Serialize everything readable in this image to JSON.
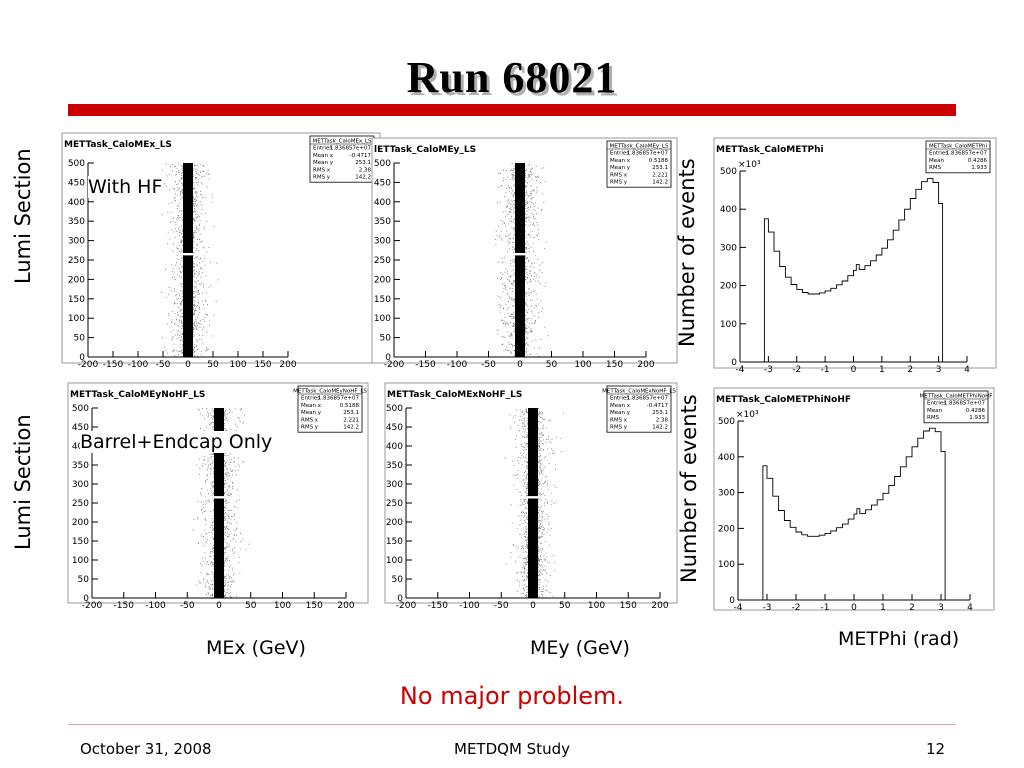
{
  "slide": {
    "title": "Run 68021",
    "annotations": {
      "with_hf": "With HF",
      "barrel_endcap": "Barrel+Endcap Only"
    },
    "row_labels": {
      "lumi_section": "Lumi Section",
      "number_of_events": "Number of events"
    },
    "column_captions": {
      "mex": "MEx (GeV)",
      "mey": "MEy (GeV)",
      "metphi": "METPhi (rad)"
    },
    "conclusion": "No major problem.",
    "footer": {
      "date": "October 31, 2008",
      "center": "METDQM Study",
      "page": "12"
    },
    "colors": {
      "title_bar": "#cc0000",
      "conclusion": "#cc0000",
      "histogram": "#000000"
    }
  },
  "chart_data": [
    {
      "type": "scatter",
      "title": "METTask_CaloMEx_LS",
      "xlim": [
        -200,
        200
      ],
      "ylim": [
        0,
        500
      ],
      "x_ticks": [
        "-200",
        "-150",
        "-100",
        "-50",
        "0",
        "50",
        "100",
        "150",
        "200"
      ],
      "y_ticks": [
        "0",
        "50",
        "100",
        "150",
        "200",
        "250",
        "300",
        "350",
        "400",
        "450",
        "500"
      ],
      "stats": [
        [
          "METTask_CaloMEx_LS",
          ""
        ],
        [
          "Entries",
          "1.836857e+07"
        ],
        [
          "Mean x",
          "-0.4717"
        ],
        [
          "Mean y",
          "253.1"
        ],
        [
          "RMS x",
          "2.38"
        ],
        [
          "RMS y",
          "142.2"
        ]
      ]
    },
    {
      "type": "scatter",
      "title": "lETTask_CaloMEy_LS",
      "xlim": [
        -200,
        200
      ],
      "ylim": [
        0,
        500
      ],
      "x_ticks": [
        "-200",
        "-150",
        "-100",
        "-50",
        "0",
        "50",
        "100",
        "150",
        "200"
      ],
      "y_ticks": [
        "0",
        "50",
        "100",
        "150",
        "200",
        "250",
        "300",
        "350",
        "400",
        "450",
        "500"
      ],
      "stats": [
        [
          "METTask_CaloMEy_LS",
          ""
        ],
        [
          "Entries",
          "1.836857e+07"
        ],
        [
          "Mean x",
          "0.5188"
        ],
        [
          "Mean y",
          "253.1"
        ],
        [
          "RMS x",
          "2.221"
        ],
        [
          "RMS y",
          "142.2"
        ]
      ]
    },
    {
      "type": "line",
      "title": "METTask_CaloMETPhi",
      "xlim": [
        -4,
        4
      ],
      "ylim": [
        0,
        500
      ],
      "y_multiplier": "×10³",
      "x_ticks": [
        "-4",
        "-3",
        "-2",
        "-1",
        "0",
        "1",
        "2",
        "3",
        "4"
      ],
      "y_ticks": [
        "0",
        "100",
        "200",
        "300",
        "400",
        "500"
      ],
      "stats": [
        [
          "METTask_CaloMETPhi",
          ""
        ],
        [
          "Entries",
          "1.836857e+07"
        ],
        [
          "Mean",
          "0.4286"
        ],
        [
          "RMS",
          "1.933"
        ]
      ],
      "x": [
        -3.14,
        -3.0,
        -2.8,
        -2.6,
        -2.4,
        -2.2,
        -2.0,
        -1.8,
        -1.6,
        -1.4,
        -1.2,
        -1.0,
        -0.8,
        -0.6,
        -0.4,
        -0.2,
        0.0,
        0.1,
        0.2,
        0.4,
        0.6,
        0.8,
        1.0,
        1.2,
        1.4,
        1.6,
        1.8,
        2.0,
        2.2,
        2.4,
        2.6,
        2.8,
        3.0,
        3.14
      ],
      "y": [
        375,
        340,
        290,
        250,
        222,
        203,
        190,
        182,
        178,
        178,
        181,
        186,
        193,
        202,
        212,
        226,
        240,
        255,
        242,
        252,
        265,
        280,
        298,
        320,
        345,
        372,
        400,
        428,
        452,
        472,
        480,
        470,
        415,
        375
      ]
    },
    {
      "type": "scatter",
      "title": "METTask_CaloMEyNoHF_LS",
      "xlim": [
        -200,
        200
      ],
      "ylim": [
        0,
        500
      ],
      "x_ticks": [
        "-200",
        "-150",
        "-100",
        "-50",
        "0",
        "50",
        "100",
        "150",
        "200"
      ],
      "y_ticks": [
        "0",
        "50",
        "100",
        "150",
        "200",
        "250",
        "300",
        "350",
        "400",
        "450",
        "500"
      ],
      "stats": [
        [
          "METTask_CaloMEyNoHF_LS",
          ""
        ],
        [
          "Entries",
          "1.836857e+07"
        ],
        [
          "Mean x",
          "0.5188"
        ],
        [
          "Mean y",
          "253.1"
        ],
        [
          "RMS x",
          "2.221"
        ],
        [
          "RMS y",
          "142.2"
        ]
      ]
    },
    {
      "type": "scatter",
      "title": "METTask_CaloMExNoHF_LS",
      "xlim": [
        -200,
        200
      ],
      "ylim": [
        0,
        500
      ],
      "x_ticks": [
        "-200",
        "-150",
        "-100",
        "-50",
        "0",
        "50",
        "100",
        "150",
        "200"
      ],
      "y_ticks": [
        "0",
        "50",
        "100",
        "150",
        "200",
        "250",
        "300",
        "350",
        "400",
        "450",
        "500"
      ],
      "stats": [
        [
          "METTask_CaloMExNoHF_LS",
          ""
        ],
        [
          "Entries",
          "1.836857e+07"
        ],
        [
          "Mean x",
          "-0.4717"
        ],
        [
          "Mean y",
          "253.1"
        ],
        [
          "RMS x",
          "2.38"
        ],
        [
          "RMS y",
          "142.2"
        ]
      ]
    },
    {
      "type": "line",
      "title": "METTask_CaloMETPhiNoHF",
      "xlim": [
        -4,
        4
      ],
      "ylim": [
        0,
        500
      ],
      "y_multiplier": "×10³",
      "x_ticks": [
        "-4",
        "-3",
        "-2",
        "-1",
        "0",
        "1",
        "2",
        "3",
        "4"
      ],
      "y_ticks": [
        "0",
        "100",
        "200",
        "300",
        "400",
        "500"
      ],
      "stats": [
        [
          "METTask_CaloMETPhiNoHF",
          ""
        ],
        [
          "Entries",
          "1.836857e+07"
        ],
        [
          "Mean",
          "0.4286"
        ],
        [
          "RMS",
          "1.933"
        ]
      ],
      "x": [
        -3.14,
        -3.0,
        -2.8,
        -2.6,
        -2.4,
        -2.2,
        -2.0,
        -1.8,
        -1.6,
        -1.4,
        -1.2,
        -1.0,
        -0.8,
        -0.6,
        -0.4,
        -0.2,
        0.0,
        0.1,
        0.2,
        0.4,
        0.6,
        0.8,
        1.0,
        1.2,
        1.4,
        1.6,
        1.8,
        2.0,
        2.2,
        2.4,
        2.6,
        2.8,
        3.0,
        3.14
      ],
      "y": [
        375,
        340,
        290,
        250,
        222,
        203,
        190,
        182,
        178,
        178,
        181,
        186,
        193,
        202,
        212,
        226,
        240,
        255,
        242,
        252,
        265,
        280,
        298,
        320,
        345,
        372,
        400,
        428,
        452,
        472,
        480,
        470,
        415,
        375
      ]
    }
  ]
}
